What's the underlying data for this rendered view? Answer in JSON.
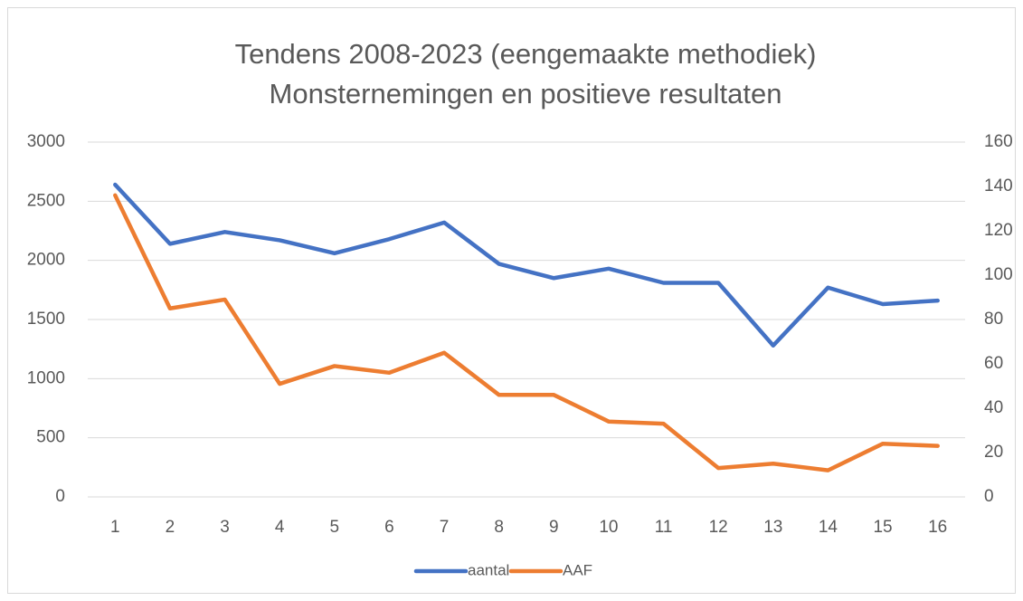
{
  "chart_data": {
    "type": "line",
    "title": [
      "Tendens 2008-2023 (eengemaakte methodiek)",
      "Monsternemingen en positieve resultaten"
    ],
    "categories": [
      1,
      2,
      3,
      4,
      5,
      6,
      7,
      8,
      9,
      10,
      11,
      12,
      13,
      14,
      15,
      16
    ],
    "series": [
      {
        "name": "aantal",
        "color": "#4472c4",
        "values": [
          2640,
          2140,
          2240,
          2170,
          2060,
          2180,
          2320,
          1970,
          1850,
          1930,
          1810,
          1810,
          1280,
          1770,
          1630,
          1660
        ]
      },
      {
        "name": "AAF",
        "color": "#ed7d31",
        "axis": "y2",
        "values": [
          136,
          85,
          89,
          51,
          59,
          56,
          65,
          46,
          46,
          34,
          33,
          13,
          15,
          12,
          24,
          23
        ]
      }
    ],
    "ylim": [
      0,
      3000
    ],
    "yticks": [
      0,
      500,
      1000,
      1500,
      2000,
      2500,
      3000
    ],
    "y2lim": [
      0,
      160
    ],
    "y2ticks": [
      0,
      20,
      40,
      60,
      80,
      100,
      120,
      140,
      160
    ],
    "grid": true,
    "legend": "bottom"
  }
}
